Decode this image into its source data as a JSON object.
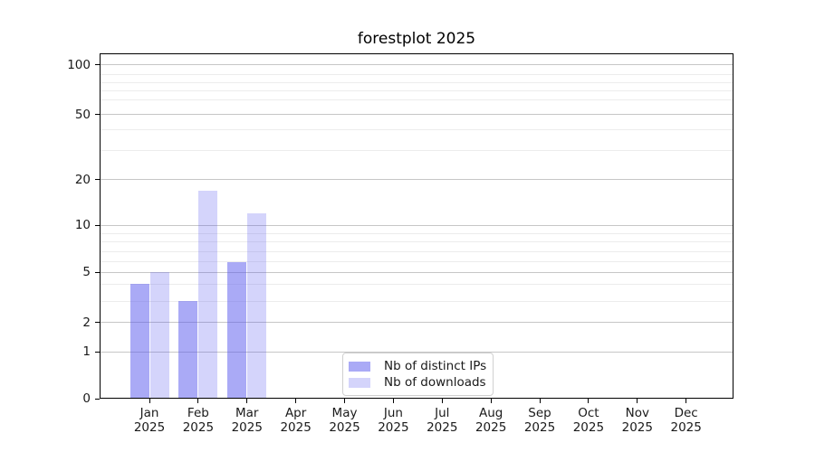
{
  "title": "forestplot 2025",
  "y_axis": {
    "tick_labels": [
      "100",
      "50",
      "20",
      "10",
      "5",
      "2",
      "1",
      "0"
    ]
  },
  "x_axis": {
    "ticks": [
      {
        "month": "Jan",
        "year": "2025"
      },
      {
        "month": "Feb",
        "year": "2025"
      },
      {
        "month": "Mar",
        "year": "2025"
      },
      {
        "month": "Apr",
        "year": "2025"
      },
      {
        "month": "May",
        "year": "2025"
      },
      {
        "month": "Jun",
        "year": "2025"
      },
      {
        "month": "Jul",
        "year": "2025"
      },
      {
        "month": "Aug",
        "year": "2025"
      },
      {
        "month": "Sep",
        "year": "2025"
      },
      {
        "month": "Oct",
        "year": "2025"
      },
      {
        "month": "Nov",
        "year": "2025"
      },
      {
        "month": "Dec",
        "year": "2025"
      }
    ]
  },
  "legend": {
    "items": [
      {
        "label": "Nb of distinct IPs",
        "color": "rgba(85,85,238,0.5)"
      },
      {
        "label": "Nb of downloads",
        "color": "rgba(85,85,238,0.25)"
      }
    ]
  },
  "chart_data": {
    "type": "bar",
    "title": "forestplot 2025",
    "categories": [
      "Jan 2025",
      "Feb 2025",
      "Mar 2025",
      "Apr 2025",
      "May 2025",
      "Jun 2025",
      "Jul 2025",
      "Aug 2025",
      "Sep 2025",
      "Oct 2025",
      "Nov 2025",
      "Dec 2025"
    ],
    "series": [
      {
        "name": "Nb of distinct IPs",
        "values": [
          4,
          3,
          6,
          0,
          0,
          0,
          0,
          0,
          0,
          0,
          0,
          0
        ],
        "color": "rgba(85,85,238,0.5)"
      },
      {
        "name": "Nb of downloads",
        "values": [
          5,
          17,
          12,
          0,
          0,
          0,
          0,
          0,
          0,
          0,
          0,
          0
        ],
        "color": "rgba(85,85,238,0.25)"
      }
    ],
    "xlabel": "",
    "ylabel": "",
    "yscale": "symlog",
    "ylim": [
      0,
      117
    ],
    "y_major_ticks": [
      100,
      50,
      20,
      10,
      5,
      2,
      1,
      0
    ],
    "grid": true,
    "legend_position": "lower center"
  }
}
